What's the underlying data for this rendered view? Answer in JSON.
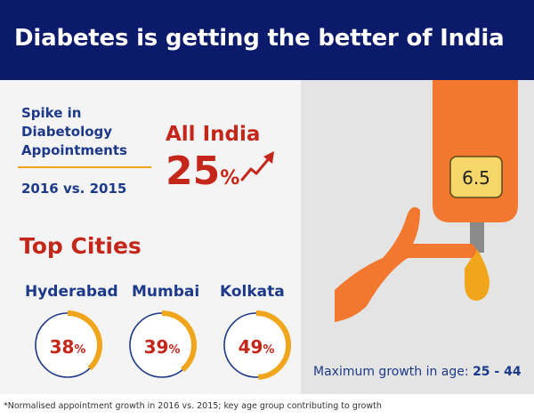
{
  "colors": {
    "header_bg": "#0b1a6b",
    "accent_red": "#c4271a",
    "accent_blue": "#1d3a8a",
    "accent_orange": "#f0a51a",
    "hand_orange": "#f2772f"
  },
  "header": {
    "title": "Diabetes is getting the better of India"
  },
  "spike": {
    "heading": "Spike in Diabetology Appointments",
    "comparison": "2016 vs. 2015"
  },
  "all_india": {
    "label": "All India",
    "value": "25",
    "unit": "%"
  },
  "top_cities": {
    "title": "Top Cities",
    "cities": [
      {
        "name": "Hyderabad",
        "value": "38",
        "unit": "%",
        "fraction": 0.38
      },
      {
        "name": "Mumbai",
        "value": "39",
        "unit": "%",
        "fraction": 0.39
      },
      {
        "name": "Kolkata",
        "value": "49",
        "unit": "%",
        "fraction": 0.49
      }
    ]
  },
  "meter": {
    "reading": "6.5"
  },
  "age": {
    "label": "Maximum growth in age:",
    "value": "25 - 44"
  },
  "footnote": "*Normalised appointment growth in 2016 vs. 2015; key age group contributing to growth"
}
